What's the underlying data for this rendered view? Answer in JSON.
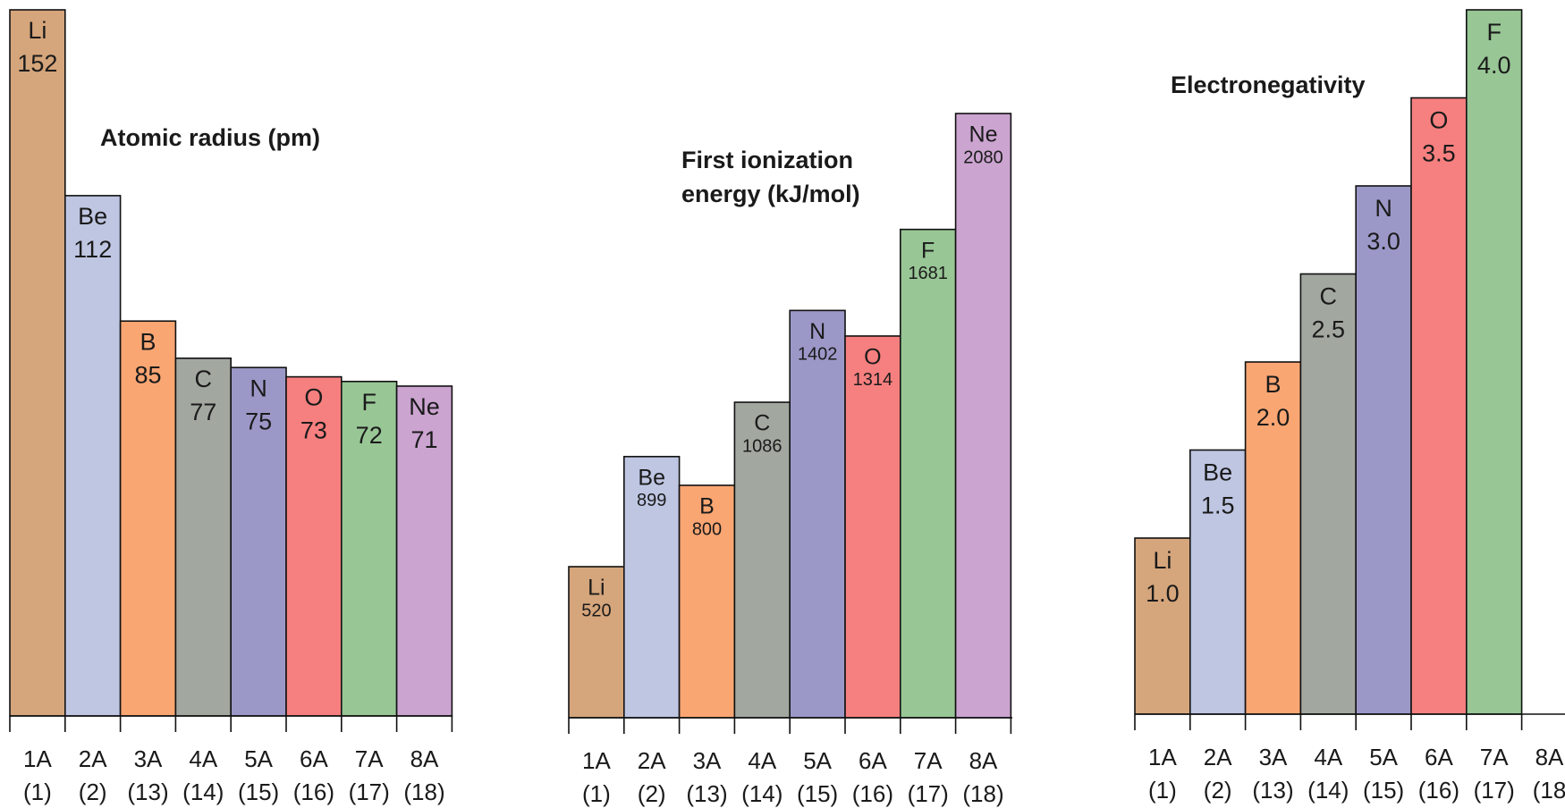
{
  "chart_data": [
    {
      "type": "bar",
      "title": [
        "Atomic radius (pm)"
      ],
      "categories": [
        "1A",
        "2A",
        "3A",
        "4A",
        "5A",
        "6A",
        "7A",
        "8A"
      ],
      "group_numbers": [
        "(1)",
        "(2)",
        "(13)",
        "(14)",
        "(15)",
        "(16)",
        "(17)",
        "(18)"
      ],
      "elements": [
        "Li",
        "Be",
        "B",
        "C",
        "N",
        "O",
        "F",
        "Ne"
      ],
      "values": [
        152,
        112,
        85,
        77,
        75,
        73,
        72,
        71
      ],
      "colors": [
        "#d5a57b",
        "#bec6e2",
        "#f9a673",
        "#a2a7a0",
        "#9b98c8",
        "#f6807f",
        "#98c695",
        "#cba4d0"
      ],
      "ylim": [
        0,
        152
      ]
    },
    {
      "type": "bar",
      "title": [
        "First ionization",
        "energy (kJ/mol)"
      ],
      "categories": [
        "1A",
        "2A",
        "3A",
        "4A",
        "5A",
        "6A",
        "7A",
        "8A"
      ],
      "group_numbers": [
        "(1)",
        "(2)",
        "(13)",
        "(14)",
        "(15)",
        "(16)",
        "(17)",
        "(18)"
      ],
      "elements": [
        "Li",
        "Be",
        "B",
        "C",
        "N",
        "O",
        "F",
        "Ne"
      ],
      "values": [
        520,
        899,
        800,
        1086,
        1402,
        1314,
        1681,
        2080
      ],
      "colors": [
        "#d5a57b",
        "#bec6e2",
        "#f9a673",
        "#a2a7a0",
        "#9b98c8",
        "#f6807f",
        "#98c695",
        "#cba4d0"
      ],
      "ylim": [
        0,
        2080
      ]
    },
    {
      "type": "bar",
      "title": [
        "Electronegativity"
      ],
      "categories": [
        "1A",
        "2A",
        "3A",
        "4A",
        "5A",
        "6A",
        "7A",
        "8A"
      ],
      "group_numbers": [
        "(1)",
        "(2)",
        "(13)",
        "(14)",
        "(15)",
        "(16)",
        "(17)",
        "(18"
      ],
      "elements": [
        "Li",
        "Be",
        "B",
        "C",
        "N",
        "O",
        "F",
        null
      ],
      "values": [
        1.0,
        1.5,
        2.0,
        2.5,
        3.0,
        3.5,
        4.0,
        null
      ],
      "value_labels": [
        "1.0",
        "1.5",
        "2.0",
        "2.5",
        "3.0",
        "3.5",
        "4.0",
        null
      ],
      "colors": [
        "#d5a57b",
        "#bec6e2",
        "#f9a673",
        "#a2a7a0",
        "#9b98c8",
        "#f6807f",
        "#98c695",
        null
      ],
      "ylim": [
        0,
        4
      ]
    }
  ]
}
